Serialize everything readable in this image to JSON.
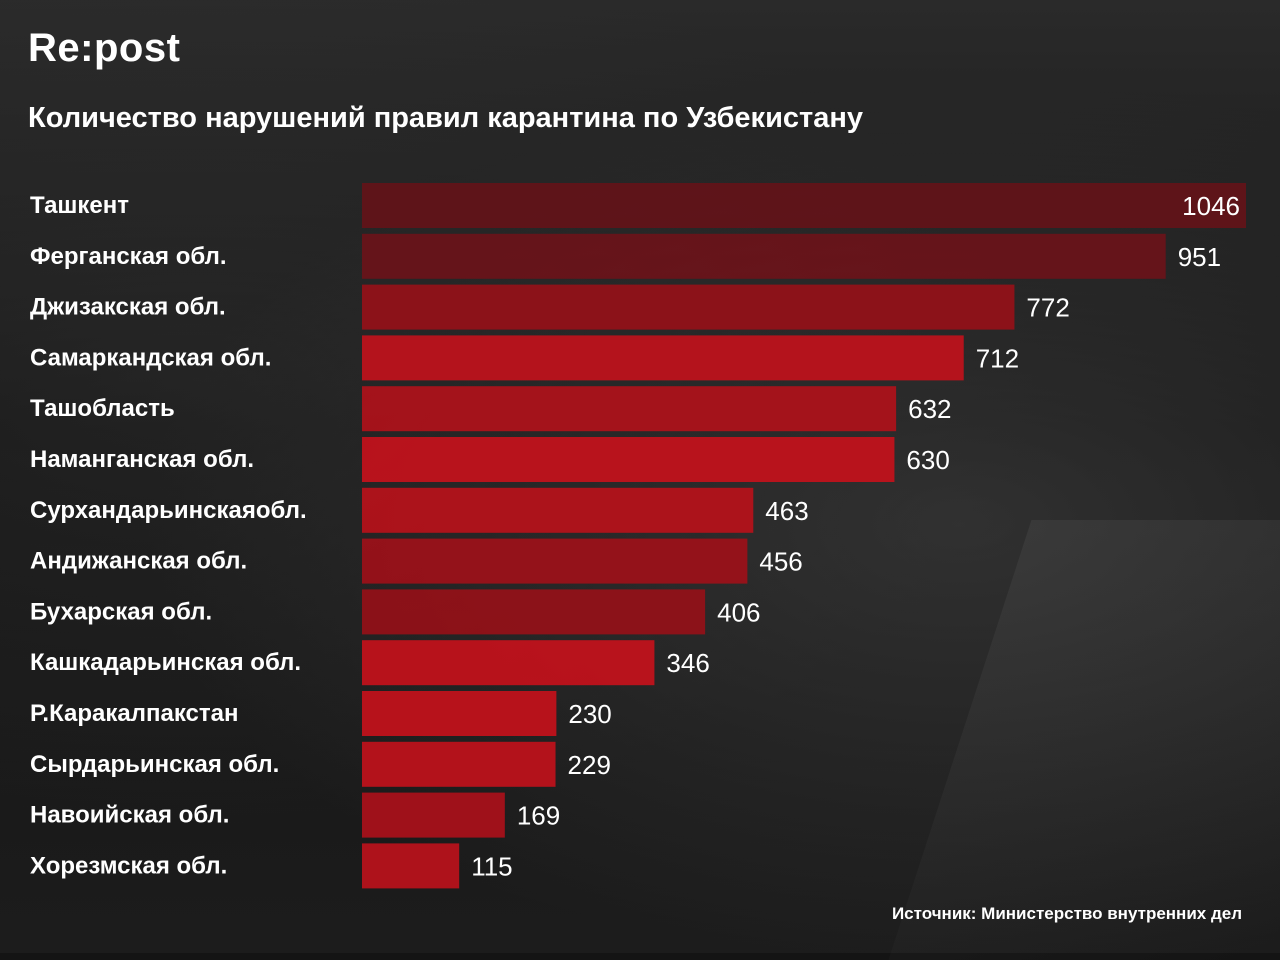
{
  "brand": "Re:post",
  "source": "Источник: Министерство внутренних дел",
  "colors": {
    "background": "#141414",
    "bar_dark": "#6e0f16",
    "bar_bright": "#c4111b",
    "text": "#ffffff"
  },
  "chart_data": {
    "type": "bar",
    "orientation": "horizontal",
    "title": "Количество нарушений правил карантина по Узбекистану",
    "categories": [
      "Ташкент",
      "Ферганская обл.",
      "Джизакская обл.",
      "Самаркандская обл.",
      "Ташобласть",
      "Наманганская обл.",
      "Сурхандарьинскаяобл.",
      "Андижанская обл.",
      "Бухарская обл.",
      "Кашкадарьинская обл.",
      "Р.Каракалпакстан",
      "Сырдарьинская обл.",
      "Навоийская обл.",
      "Хорезмская обл."
    ],
    "values": [
      1046,
      951,
      772,
      712,
      632,
      630,
      463,
      456,
      406,
      346,
      230,
      229,
      169,
      115
    ],
    "value_labels": [
      "1046",
      "951",
      "772",
      "712",
      "632",
      "630",
      "463",
      "456",
      "406",
      "346",
      "230",
      "229",
      "169",
      "115"
    ],
    "xlim": [
      0,
      1046
    ],
    "grid": false,
    "legend": "none"
  }
}
